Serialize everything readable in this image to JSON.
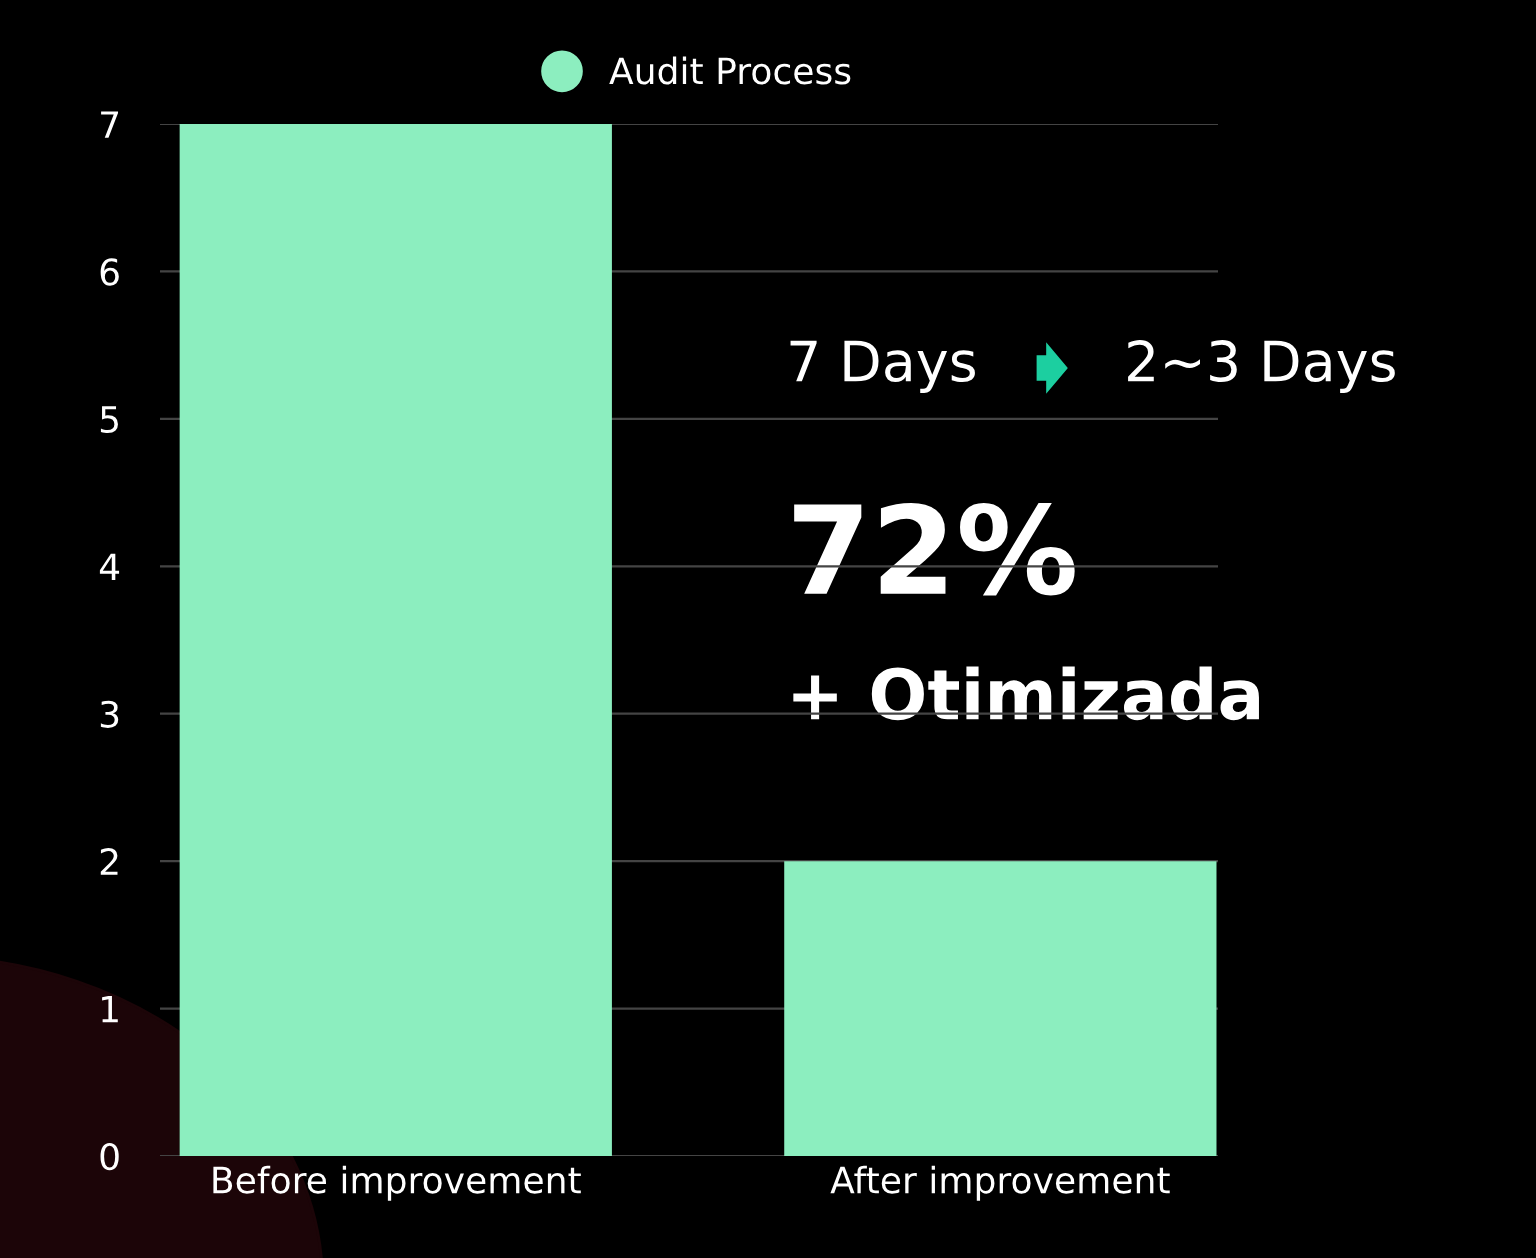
{
  "chart_data": {
    "type": "bar",
    "categories": [
      "Before improvement",
      "After improvement"
    ],
    "series": [
      {
        "name": "Audit Process",
        "color": "#8ceebf",
        "values": [
          7,
          2
        ]
      }
    ],
    "ylim": [
      0,
      7
    ],
    "yticks": [
      0,
      1,
      2,
      3,
      4,
      5,
      6,
      7
    ],
    "grid": "y",
    "legend": "top",
    "marker": "circle",
    "annotations": [
      "7 Days",
      "2~3 Days",
      "72%",
      "+ Otimizada"
    ]
  }
}
